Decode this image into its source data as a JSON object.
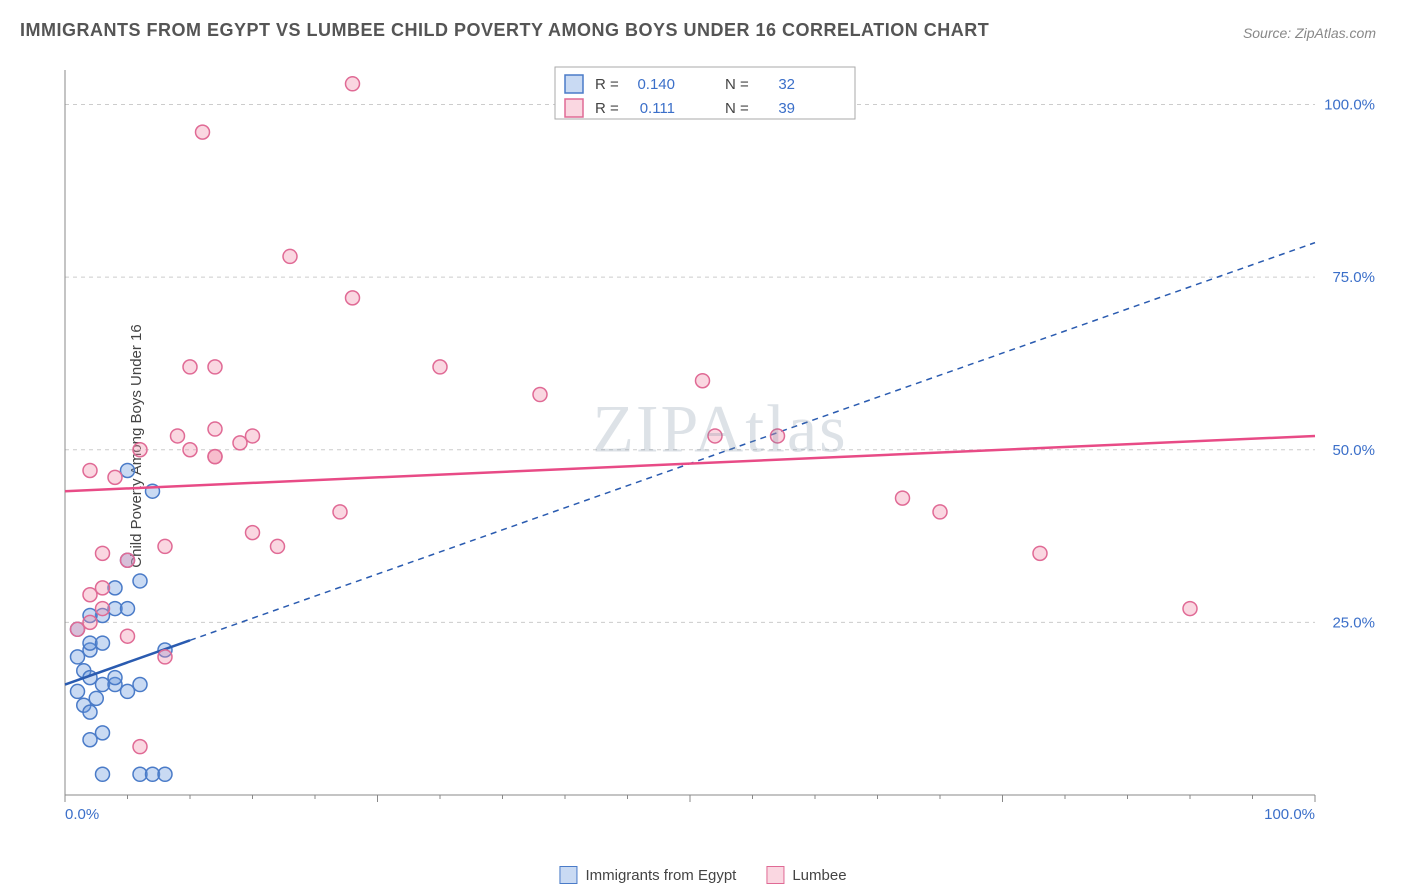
{
  "title": "IMMIGRANTS FROM EGYPT VS LUMBEE CHILD POVERTY AMONG BOYS UNDER 16 CORRELATION CHART",
  "source": "Source: ZipAtlas.com",
  "ylabel": "Child Poverty Among Boys Under 16",
  "watermark": "ZIPAtlas",
  "chart": {
    "type": "scatter",
    "xlim": [
      0,
      100
    ],
    "ylim": [
      0,
      105
    ],
    "xticks": [
      0,
      25,
      50,
      75,
      100
    ],
    "yticks": [
      25,
      50,
      75,
      100
    ],
    "xaxis_labels": {
      "0": "0.0%",
      "100": "100.0%"
    },
    "yaxis_labels": {
      "25": "25.0%",
      "50": "50.0%",
      "75": "75.0%",
      "100": "100.0%"
    },
    "background_color": "#ffffff",
    "grid_color": "#cccccc",
    "axis_color": "#888888",
    "label_color": "#3b6fc9",
    "label_fontsize": 15,
    "title_color": "#555555",
    "title_fontsize": 18
  },
  "series": [
    {
      "name": "Immigrants from Egypt",
      "marker_fill": "rgba(100,150,220,0.35)",
      "marker_stroke": "#4a7bc8",
      "marker_radius": 7,
      "trendline_color": "#2a5bb0",
      "trendline_solid_xmax": 10,
      "trendline": [
        [
          0,
          16
        ],
        [
          100,
          80
        ]
      ],
      "r_value": "0.140",
      "n_value": "32",
      "points": [
        [
          1,
          15
        ],
        [
          1.5,
          18
        ],
        [
          2,
          17
        ],
        [
          2.5,
          14
        ],
        [
          1,
          20
        ],
        [
          2,
          21
        ],
        [
          3,
          16
        ],
        [
          1.5,
          13
        ],
        [
          2,
          12
        ],
        [
          3,
          26
        ],
        [
          4,
          27
        ],
        [
          5,
          27
        ],
        [
          2,
          22
        ],
        [
          3,
          22
        ],
        [
          4,
          16
        ],
        [
          5,
          15
        ],
        [
          6,
          16
        ],
        [
          2,
          8
        ],
        [
          3,
          9
        ],
        [
          4,
          17
        ],
        [
          8,
          21
        ],
        [
          3,
          3
        ],
        [
          6,
          3
        ],
        [
          7,
          3
        ],
        [
          8,
          3
        ],
        [
          4,
          30
        ],
        [
          5,
          34
        ],
        [
          6,
          31
        ],
        [
          2,
          26
        ],
        [
          1,
          24
        ],
        [
          5,
          47
        ],
        [
          7,
          44
        ]
      ]
    },
    {
      "name": "Lumbee",
      "marker_fill": "rgba(240,140,170,0.35)",
      "marker_stroke": "#e06a95",
      "marker_radius": 7,
      "trendline_color": "#e84b86",
      "trendline_solid_xmax": 100,
      "trendline": [
        [
          0,
          44
        ],
        [
          100,
          52
        ]
      ],
      "r_value": "0.111",
      "n_value": "39",
      "points": [
        [
          2,
          47
        ],
        [
          4,
          46
        ],
        [
          1,
          24
        ],
        [
          2,
          25
        ],
        [
          3,
          35
        ],
        [
          5,
          34
        ],
        [
          8,
          36
        ],
        [
          2,
          29
        ],
        [
          3,
          30
        ],
        [
          6,
          50
        ],
        [
          10,
          50
        ],
        [
          12,
          49
        ],
        [
          14,
          51
        ],
        [
          15,
          52
        ],
        [
          9,
          52
        ],
        [
          12,
          53
        ],
        [
          10,
          62
        ],
        [
          12,
          62
        ],
        [
          12,
          49
        ],
        [
          15,
          38
        ],
        [
          17,
          36
        ],
        [
          22,
          41
        ],
        [
          18,
          78
        ],
        [
          23,
          72
        ],
        [
          30,
          62
        ],
        [
          23,
          103
        ],
        [
          11,
          96
        ],
        [
          38,
          58
        ],
        [
          52,
          52
        ],
        [
          57,
          52
        ],
        [
          51,
          60
        ],
        [
          67,
          43
        ],
        [
          70,
          41
        ],
        [
          78,
          35
        ],
        [
          90,
          27
        ],
        [
          5,
          23
        ],
        [
          6,
          7
        ],
        [
          3,
          27
        ],
        [
          8,
          20
        ]
      ]
    }
  ],
  "legend": {
    "title_r": "R =",
    "title_n": "N ="
  }
}
